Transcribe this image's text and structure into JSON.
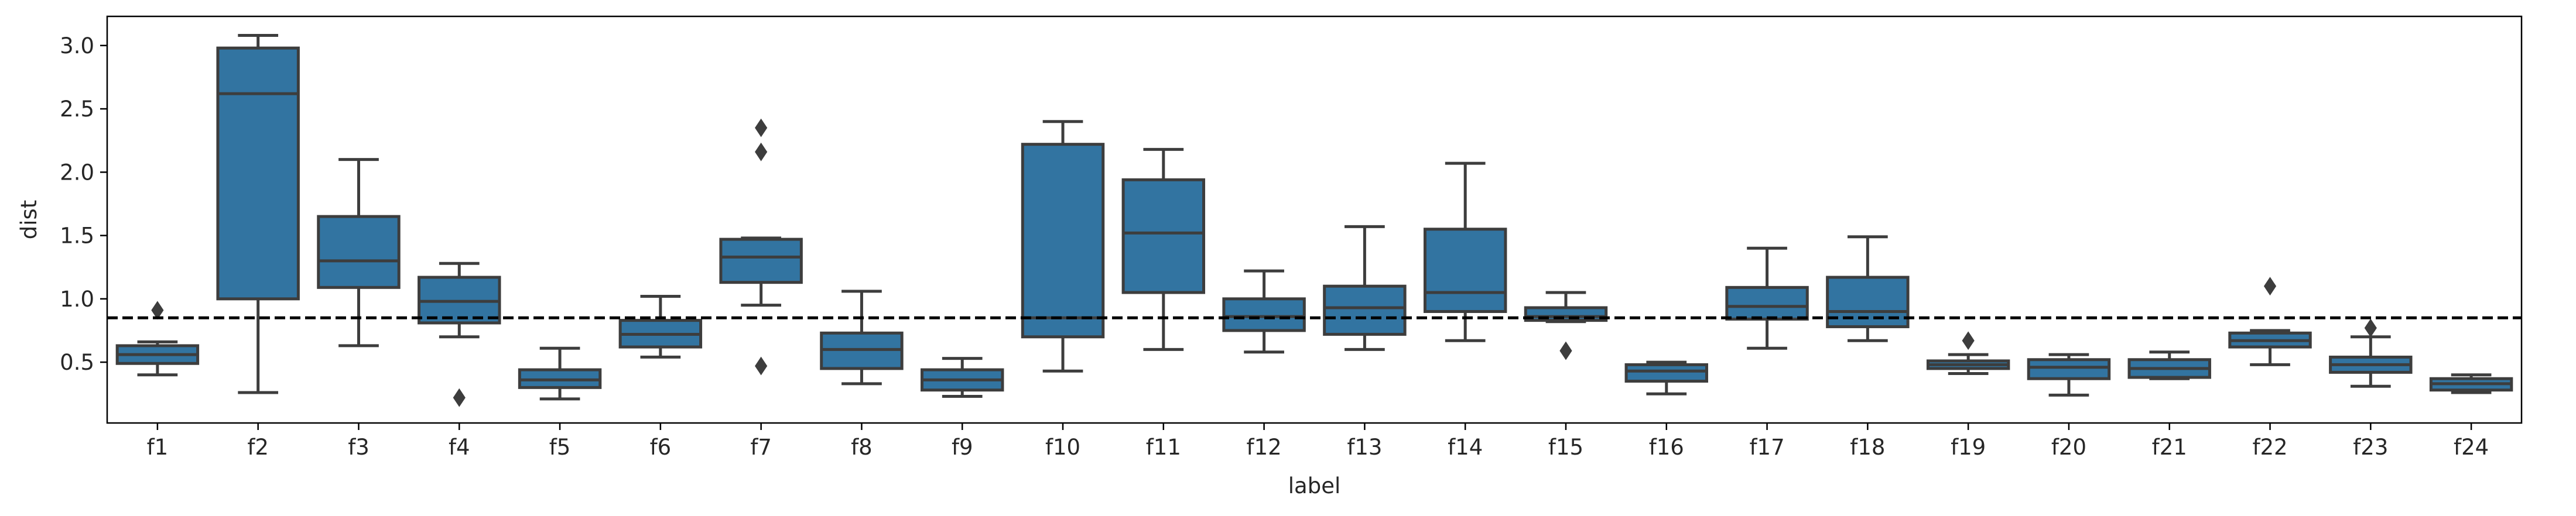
{
  "chart_data": {
    "type": "box",
    "xlabel": "label",
    "ylabel": "dist",
    "ylim": [
      0.02,
      3.23
    ],
    "y_ticks": [
      "0.5",
      "1.0",
      "1.5",
      "2.0",
      "2.5",
      "3.0"
    ],
    "reference_line": {
      "y": 0.85,
      "style": "dashed",
      "color": "#000000"
    },
    "box_color": "#3274a1",
    "edge_color": "#3d3d3d",
    "categories": [
      "f1",
      "f2",
      "f3",
      "f4",
      "f5",
      "f6",
      "f7",
      "f8",
      "f9",
      "f10",
      "f11",
      "f12",
      "f13",
      "f14",
      "f15",
      "f16",
      "f17",
      "f18",
      "f19",
      "f20",
      "f21",
      "f22",
      "f23",
      "f24"
    ],
    "boxes": [
      {
        "label": "f1",
        "whisker_low": 0.4,
        "q1": 0.49,
        "median": 0.56,
        "q3": 0.63,
        "whisker_high": 0.66,
        "outliers": [
          0.91
        ]
      },
      {
        "label": "f2",
        "whisker_low": 0.26,
        "q1": 1.0,
        "median": 2.62,
        "q3": 2.98,
        "whisker_high": 3.08,
        "outliers": []
      },
      {
        "label": "f3",
        "whisker_low": 0.63,
        "q1": 1.09,
        "median": 1.3,
        "q3": 1.65,
        "whisker_high": 2.1,
        "outliers": []
      },
      {
        "label": "f4",
        "whisker_low": 0.7,
        "q1": 0.81,
        "median": 0.98,
        "q3": 1.17,
        "whisker_high": 1.28,
        "outliers": [
          0.22
        ]
      },
      {
        "label": "f5",
        "whisker_low": 0.21,
        "q1": 0.3,
        "median": 0.36,
        "q3": 0.44,
        "whisker_high": 0.61,
        "outliers": []
      },
      {
        "label": "f6",
        "whisker_low": 0.54,
        "q1": 0.62,
        "median": 0.72,
        "q3": 0.83,
        "whisker_high": 1.02,
        "outliers": []
      },
      {
        "label": "f7",
        "whisker_low": 0.95,
        "q1": 1.13,
        "median": 1.33,
        "q3": 1.47,
        "whisker_high": 1.48,
        "outliers": [
          0.47,
          2.16,
          2.35
        ]
      },
      {
        "label": "f8",
        "whisker_low": 0.33,
        "q1": 0.45,
        "median": 0.6,
        "q3": 0.73,
        "whisker_high": 1.06,
        "outliers": []
      },
      {
        "label": "f9",
        "whisker_low": 0.23,
        "q1": 0.28,
        "median": 0.36,
        "q3": 0.44,
        "whisker_high": 0.53,
        "outliers": []
      },
      {
        "label": "f10",
        "whisker_low": 0.43,
        "q1": 0.7,
        "median": 0.85,
        "q3": 2.22,
        "whisker_high": 2.4,
        "outliers": []
      },
      {
        "label": "f11",
        "whisker_low": 0.6,
        "q1": 1.05,
        "median": 1.52,
        "q3": 1.94,
        "whisker_high": 2.18,
        "outliers": []
      },
      {
        "label": "f12",
        "whisker_low": 0.58,
        "q1": 0.75,
        "median": 0.86,
        "q3": 1.0,
        "whisker_high": 1.22,
        "outliers": []
      },
      {
        "label": "f13",
        "whisker_low": 0.6,
        "q1": 0.72,
        "median": 0.93,
        "q3": 1.1,
        "whisker_high": 1.57,
        "outliers": []
      },
      {
        "label": "f14",
        "whisker_low": 0.67,
        "q1": 0.9,
        "median": 1.05,
        "q3": 1.55,
        "whisker_high": 2.07,
        "outliers": []
      },
      {
        "label": "f15",
        "whisker_low": 0.82,
        "q1": 0.83,
        "median": 0.86,
        "q3": 0.93,
        "whisker_high": 1.05,
        "outliers": [
          0.59
        ]
      },
      {
        "label": "f16",
        "whisker_low": 0.25,
        "q1": 0.35,
        "median": 0.43,
        "q3": 0.48,
        "whisker_high": 0.5,
        "outliers": []
      },
      {
        "label": "f17",
        "whisker_low": 0.61,
        "q1": 0.84,
        "median": 0.94,
        "q3": 1.09,
        "whisker_high": 1.4,
        "outliers": []
      },
      {
        "label": "f18",
        "whisker_low": 0.67,
        "q1": 0.78,
        "median": 0.9,
        "q3": 1.17,
        "whisker_high": 1.49,
        "outliers": []
      },
      {
        "label": "f19",
        "whisker_low": 0.41,
        "q1": 0.45,
        "median": 0.48,
        "q3": 0.51,
        "whisker_high": 0.56,
        "outliers": [
          0.67
        ]
      },
      {
        "label": "f20",
        "whisker_low": 0.24,
        "q1": 0.37,
        "median": 0.46,
        "q3": 0.52,
        "whisker_high": 0.56,
        "outliers": []
      },
      {
        "label": "f21",
        "whisker_low": 0.37,
        "q1": 0.38,
        "median": 0.45,
        "q3": 0.52,
        "whisker_high": 0.58,
        "outliers": []
      },
      {
        "label": "f22",
        "whisker_low": 0.48,
        "q1": 0.62,
        "median": 0.67,
        "q3": 0.73,
        "whisker_high": 0.75,
        "outliers": [
          1.1
        ]
      },
      {
        "label": "f23",
        "whisker_low": 0.31,
        "q1": 0.42,
        "median": 0.48,
        "q3": 0.54,
        "whisker_high": 0.7,
        "outliers": [
          0.77
        ]
      },
      {
        "label": "f24",
        "whisker_low": 0.26,
        "q1": 0.28,
        "median": 0.33,
        "q3": 0.37,
        "whisker_high": 0.4,
        "outliers": []
      }
    ]
  }
}
